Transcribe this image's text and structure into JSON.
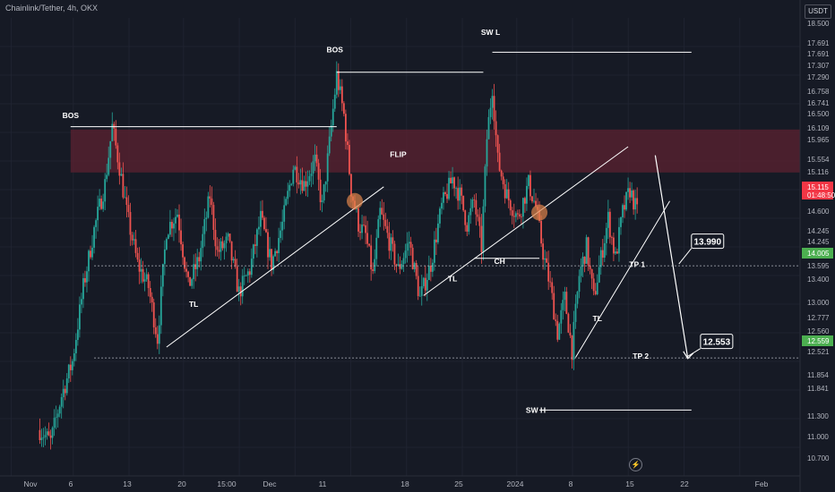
{
  "header": {
    "title": "Chainlink/Tether, 4h, OKX",
    "currency": "USDT"
  },
  "colors": {
    "background": "#161a25",
    "up": "#26a69a",
    "down": "#ef5350",
    "zone": "#5c2130",
    "annotation": "#ffffff",
    "current": "#f23645",
    "target": "#4caf50"
  },
  "chart_data": {
    "type": "candlestick",
    "title": "",
    "xlabel": "",
    "ylabel": "",
    "ylim": [
      10.5,
      18.5
    ],
    "x_ticks": [
      "Nov",
      "6",
      "13",
      "20",
      "15:00",
      "Dec",
      "11",
      "18",
      "25",
      "2024",
      "8",
      "15",
      "22",
      "Feb"
    ],
    "y_ticks": [
      "18.500",
      "17.691",
      "17.691",
      "17.307",
      "17.290",
      "16.758",
      "16.741",
      "16.500",
      "16.109",
      "15.965",
      "15.554",
      "15.116",
      "14.600",
      "14.245",
      "14.245",
      "13.595",
      "13.400",
      "13.000",
      "12.777",
      "12.560",
      "12.521",
      "11.854",
      "11.841",
      "11.300",
      "11.000",
      "10.700"
    ],
    "price_badges": [
      {
        "label": "15.115",
        "sub": "01:48:50",
        "value": 15.115,
        "color": "#f23645"
      },
      {
        "label": "14.005",
        "value": 14.005,
        "color": "#4caf50"
      },
      {
        "label": "12.559",
        "value": 12.559,
        "color": "#4caf50"
      }
    ],
    "trend_path": [
      [
        0,
        11.3
      ],
      [
        6,
        11.1
      ],
      [
        12,
        11.9
      ],
      [
        18,
        12.5
      ],
      [
        24,
        13.8
      ],
      [
        30,
        14.8
      ],
      [
        36,
        15.6
      ],
      [
        40,
        16.6
      ],
      [
        44,
        15.9
      ],
      [
        48,
        15.1
      ],
      [
        54,
        14.2
      ],
      [
        60,
        13.8
      ],
      [
        65,
        12.9
      ],
      [
        70,
        14.8
      ],
      [
        76,
        15.1
      ],
      [
        82,
        13.8
      ],
      [
        88,
        14.3
      ],
      [
        94,
        15.4
      ],
      [
        98,
        14.4
      ],
      [
        104,
        14.6
      ],
      [
        110,
        13.7
      ],
      [
        116,
        14.1
      ],
      [
        122,
        15.0
      ],
      [
        128,
        14.2
      ],
      [
        134,
        14.9
      ],
      [
        140,
        15.9
      ],
      [
        146,
        15.6
      ],
      [
        152,
        16.0
      ],
      [
        156,
        15.2
      ],
      [
        160,
        16.3
      ],
      [
        164,
        17.5
      ],
      [
        168,
        16.8
      ],
      [
        172,
        15.5
      ],
      [
        176,
        14.9
      ],
      [
        180,
        14.7
      ],
      [
        184,
        14.0
      ],
      [
        188,
        15.1
      ],
      [
        192,
        14.7
      ],
      [
        198,
        14.1
      ],
      [
        204,
        14.6
      ],
      [
        210,
        13.6
      ],
      [
        216,
        14.2
      ],
      [
        222,
        15.2
      ],
      [
        228,
        15.7
      ],
      [
        232,
        15.4
      ],
      [
        236,
        14.9
      ],
      [
        240,
        15.3
      ],
      [
        244,
        14.5
      ],
      [
        247,
        16.4
      ],
      [
        250,
        17.3
      ],
      [
        253,
        16.0
      ],
      [
        258,
        15.4
      ],
      [
        264,
        15.0
      ],
      [
        270,
        15.6
      ],
      [
        274,
        15.2
      ],
      [
        278,
        14.4
      ],
      [
        282,
        13.8
      ],
      [
        286,
        13.0
      ],
      [
        290,
        13.6
      ],
      [
        294,
        12.7
      ],
      [
        298,
        14.0
      ],
      [
        302,
        14.5
      ],
      [
        306,
        13.6
      ],
      [
        310,
        14.3
      ],
      [
        314,
        15.0
      ],
      [
        318,
        14.3
      ],
      [
        322,
        15.1
      ],
      [
        326,
        15.5
      ],
      [
        330,
        15.1
      ]
    ],
    "zone": {
      "label": "FLIP",
      "from": 15.8,
      "to": 16.55
    },
    "labels": [
      {
        "text": "BOS",
        "x": 17,
        "y": 16.75
      },
      {
        "text": "BOS",
        "x": 163,
        "y": 17.9
      },
      {
        "text": "SW L",
        "x": 249,
        "y": 18.2
      },
      {
        "text": "FLIP",
        "x": 198,
        "y": 16.07
      },
      {
        "text": "TL",
        "x": 85,
        "y": 13.45
      },
      {
        "text": "TL",
        "x": 228,
        "y": 13.9
      },
      {
        "text": "CH",
        "x": 254,
        "y": 14.2
      },
      {
        "text": "TL",
        "x": 308,
        "y": 13.2
      },
      {
        "text": "SW H",
        "x": 274,
        "y": 11.6
      },
      {
        "text": "TP 1",
        "x": 330,
        "y": 14.15
      },
      {
        "text": "TP 2",
        "x": 332,
        "y": 12.55
      }
    ],
    "segments": [
      {
        "from": [
          17,
          16.6
        ],
        "to": [
          164,
          16.6
        ]
      },
      {
        "from": [
          164,
          17.55
        ],
        "to": [
          245,
          17.55
        ]
      },
      {
        "from": [
          250,
          17.9
        ],
        "to": [
          360,
          17.9
        ]
      },
      {
        "from": [
          276,
          11.65
        ],
        "to": [
          360,
          11.65
        ]
      },
      {
        "from": [
          240,
          14.3
        ],
        "to": [
          276,
          14.3
        ]
      },
      {
        "from": [
          70,
          12.75
        ],
        "to": [
          190,
          15.55
        ]
      },
      {
        "from": [
          212,
          13.65
        ],
        "to": [
          325,
          16.25
        ]
      },
      {
        "from": [
          296,
          12.57
        ],
        "to": [
          348,
          15.3
        ]
      }
    ],
    "projection": [
      [
        340,
        16.1
      ],
      [
        358,
        12.55
      ]
    ],
    "circles": [
      {
        "x": 174,
        "y": 15.3
      },
      {
        "x": 276,
        "y": 15.1
      }
    ],
    "targets": [
      {
        "label": "13.990",
        "x": 360,
        "y": 14.6,
        "level": 14.17
      },
      {
        "label": "12.553",
        "x": 365,
        "y": 12.85,
        "level": 12.56
      }
    ],
    "x_range": [
      -22,
      420
    ]
  }
}
